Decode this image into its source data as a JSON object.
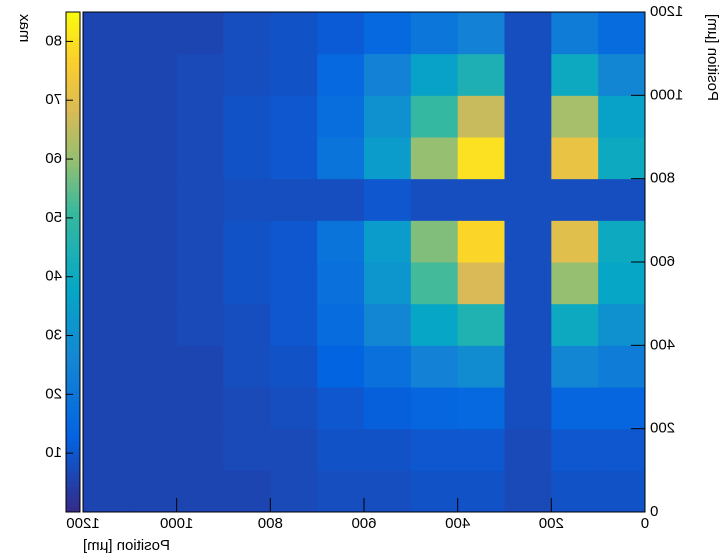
{
  "chart_data": {
    "type": "heatmap",
    "xlabel": "Position [µm]",
    "ylabel": "Position [µm]",
    "zlabel": "max",
    "xbins": [
      0,
      100,
      200,
      300,
      400,
      500,
      600,
      700,
      800,
      900,
      1000,
      1100,
      1200
    ],
    "ybins": [
      0,
      100,
      200,
      300,
      400,
      500,
      600,
      700,
      800,
      900,
      1000,
      1100,
      1200
    ],
    "z": [
      [
        9,
        9,
        7,
        9,
        9,
        8,
        8,
        7,
        6,
        6,
        6,
        6
      ],
      [
        10,
        10,
        7,
        10,
        10,
        9,
        9,
        7,
        7,
        6,
        6,
        6
      ],
      [
        14,
        14,
        8,
        15,
        14,
        12,
        10,
        8,
        7,
        6,
        6,
        6
      ],
      [
        22,
        26,
        8,
        28,
        24,
        18,
        13,
        9,
        8,
        6,
        6,
        6
      ],
      [
        30,
        40,
        8,
        45,
        38,
        26,
        16,
        10,
        8,
        7,
        6,
        6
      ],
      [
        38,
        60,
        8,
        68,
        52,
        32,
        18,
        10,
        9,
        7,
        6,
        6
      ],
      [
        40,
        70,
        8,
        78,
        58,
        34,
        19,
        10,
        9,
        7,
        6,
        6
      ],
      [
        8,
        8,
        8,
        8,
        8,
        10,
        8,
        8,
        8,
        7,
        6,
        6
      ],
      [
        40,
        72,
        8,
        80,
        60,
        34,
        19,
        10,
        9,
        7,
        6,
        6
      ],
      [
        36,
        62,
        8,
        66,
        50,
        30,
        17,
        10,
        9,
        7,
        6,
        6
      ],
      [
        26,
        40,
        8,
        44,
        36,
        24,
        15,
        9,
        8,
        7,
        6,
        6
      ],
      [
        16,
        22,
        8,
        24,
        20,
        15,
        11,
        9,
        8,
        6,
        6,
        6
      ]
    ],
    "colormap": "parula",
    "mirrored": true,
    "xlim": [
      0,
      1200
    ],
    "xticks": [
      0,
      200,
      400,
      600,
      800,
      1000,
      1200
    ],
    "ylim": [
      0,
      1200
    ],
    "yticks": [
      0,
      200,
      400,
      600,
      800,
      1000,
      1200
    ],
    "zlim": [
      0,
      85
    ],
    "zticks": [
      10,
      20,
      30,
      40,
      50,
      60,
      70,
      80
    ]
  }
}
